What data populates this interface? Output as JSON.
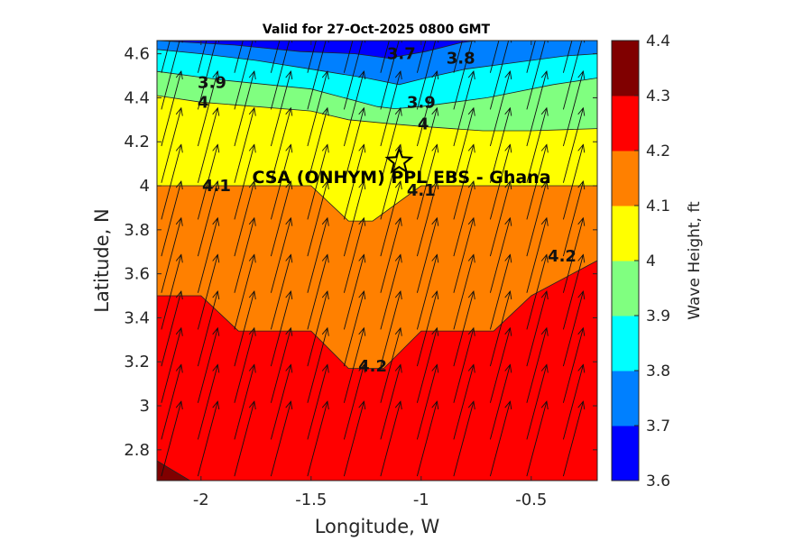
{
  "chart_data": {
    "type": "contour",
    "title": "Valid for 27-Oct-2025 0800 GMT",
    "xlabel": "Longitude, W",
    "ylabel": "Latitude, N",
    "xlim": [
      -2.2,
      -0.2
    ],
    "ylim": [
      2.66,
      4.66
    ],
    "x_ticks": [
      -2,
      -1.5,
      -1,
      -0.5
    ],
    "x_tick_labels": [
      "-2",
      "-1.5",
      "-1",
      "-0.5"
    ],
    "y_ticks": [
      2.8,
      3,
      3.2,
      3.4,
      3.6,
      3.8,
      4,
      4.2,
      4.4,
      4.6
    ],
    "y_tick_labels": [
      "2.8",
      "3",
      "3.2",
      "3.4",
      "3.6",
      "3.8",
      "4",
      "4.2",
      "4.4",
      "4.6"
    ],
    "colorbar": {
      "label": "Wave Height, ft",
      "range": [
        3.6,
        4.4
      ],
      "levels": [
        3.6,
        3.7,
        3.8,
        3.9,
        4.0,
        4.1,
        4.2,
        4.3,
        4.4
      ],
      "tick_labels": [
        "3.6",
        "3.7",
        "3.8",
        "3.9",
        "4",
        "4.1",
        "4.2",
        "4.3",
        "4.4"
      ],
      "colors": [
        "#0000ff",
        "#0080ff",
        "#00ffff",
        "#80ff80",
        "#ffff00",
        "#ff8000",
        "#ff0000",
        "#800000"
      ]
    },
    "contour_bands": [
      {
        "level": 3.6,
        "points": [
          [
            -2.2,
            4.66
          ],
          [
            -0.2,
            4.66
          ]
        ]
      },
      {
        "level": 3.7,
        "points": [
          [
            -2.2,
            4.66
          ],
          [
            -1.85,
            4.64
          ],
          [
            -1.55,
            4.61
          ],
          [
            -1.3,
            4.6
          ],
          [
            -1.15,
            4.58
          ],
          [
            -0.98,
            4.61
          ],
          [
            -0.82,
            4.65
          ],
          [
            -0.75,
            4.66
          ]
        ]
      },
      {
        "level": 3.8,
        "points": [
          [
            -2.2,
            4.62
          ],
          [
            -2.0,
            4.6
          ],
          [
            -1.75,
            4.57
          ],
          [
            -1.5,
            4.53
          ],
          [
            -1.25,
            4.49
          ],
          [
            -1.1,
            4.46
          ],
          [
            -0.98,
            4.49
          ],
          [
            -0.8,
            4.53
          ],
          [
            -0.5,
            4.57
          ],
          [
            -0.35,
            4.59
          ],
          [
            -0.2,
            4.6
          ]
        ]
      },
      {
        "level": 3.9,
        "points": [
          [
            -2.2,
            4.52
          ],
          [
            -1.9,
            4.48
          ],
          [
            -1.5,
            4.44
          ],
          [
            -1.2,
            4.36
          ],
          [
            -1.12,
            4.35
          ],
          [
            -1.0,
            4.36
          ],
          [
            -0.7,
            4.4
          ],
          [
            -0.4,
            4.46
          ],
          [
            -0.2,
            4.49
          ]
        ]
      },
      {
        "level": 4.0,
        "points": [
          [
            -2.2,
            4.41
          ],
          [
            -2.0,
            4.38
          ],
          [
            -1.5,
            4.34
          ],
          [
            -1.33,
            4.3
          ],
          [
            -1.12,
            4.28
          ],
          [
            -1.0,
            4.27
          ],
          [
            -0.72,
            4.25
          ],
          [
            -0.5,
            4.25
          ],
          [
            -0.2,
            4.26
          ]
        ]
      },
      {
        "level": 4.1,
        "points": [
          [
            -2.2,
            4.0
          ],
          [
            -1.5,
            4.0
          ],
          [
            -1.33,
            3.84
          ],
          [
            -1.22,
            3.84
          ],
          [
            -1.0,
            4.0
          ],
          [
            -0.2,
            4.0
          ]
        ]
      },
      {
        "level": 4.2,
        "points": [
          [
            -2.2,
            3.5
          ],
          [
            -2.0,
            3.5
          ],
          [
            -1.83,
            3.34
          ],
          [
            -1.5,
            3.34
          ],
          [
            -1.33,
            3.17
          ],
          [
            -1.17,
            3.17
          ],
          [
            -1.0,
            3.34
          ],
          [
            -0.67,
            3.34
          ],
          [
            -0.5,
            3.5
          ],
          [
            -0.2,
            3.66
          ]
        ]
      },
      {
        "level": 4.3,
        "points": [
          [
            -2.2,
            2.75
          ],
          [
            -2.15,
            2.72
          ],
          [
            -2.05,
            2.66
          ]
        ]
      }
    ],
    "contour_labels": [
      {
        "text": "3.7",
        "lon": -1.09,
        "lat": 4.6
      },
      {
        "text": "3.8",
        "lon": -0.82,
        "lat": 4.58
      },
      {
        "text": "3.9",
        "lon": -1.95,
        "lat": 4.47
      },
      {
        "text": "3.9",
        "lon": -1.0,
        "lat": 4.38
      },
      {
        "text": "4",
        "lon": -1.99,
        "lat": 4.38
      },
      {
        "text": "4",
        "lon": -0.99,
        "lat": 4.28
      },
      {
        "text": "4.1",
        "lon": -1.93,
        "lat": 4.0
      },
      {
        "text": "4.1",
        "lon": -1.0,
        "lat": 3.98
      },
      {
        "text": "4.2",
        "lon": -1.22,
        "lat": 3.18
      },
      {
        "text": "4.2",
        "lon": -0.36,
        "lat": 3.68
      }
    ],
    "vector_field": {
      "description": "wave direction arrows",
      "lon_start": -2.18,
      "lon_step": 0.166,
      "lon_count": 12,
      "lat_start": 2.68,
      "lat_step": 0.1667,
      "lat_count": 12,
      "u": 0.09,
      "v": 0.34
    },
    "site_marker": {
      "label": "CSA (ONHYM) PPL EBS  - Ghana",
      "lon": -1.1,
      "lat": 4.11,
      "symbol": "star"
    }
  }
}
